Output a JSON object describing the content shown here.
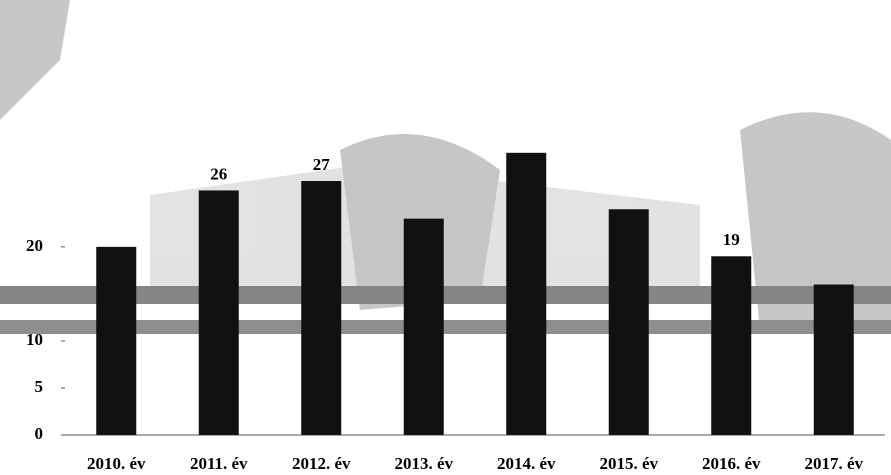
{
  "chart_data": {
    "type": "bar",
    "categories": [
      "2010. év",
      "2011. év",
      "2012. év",
      "2013. év",
      "2014. év",
      "2015. év",
      "2016. év",
      "2017. év"
    ],
    "values": [
      20,
      26,
      27,
      23,
      30,
      24,
      19,
      16
    ],
    "value_labels": [
      null,
      "26",
      "27",
      null,
      null,
      null,
      "19",
      null
    ],
    "color": "#111111",
    "ylim": [
      0,
      32
    ],
    "yticks": [
      0,
      5,
      10,
      20
    ]
  }
}
